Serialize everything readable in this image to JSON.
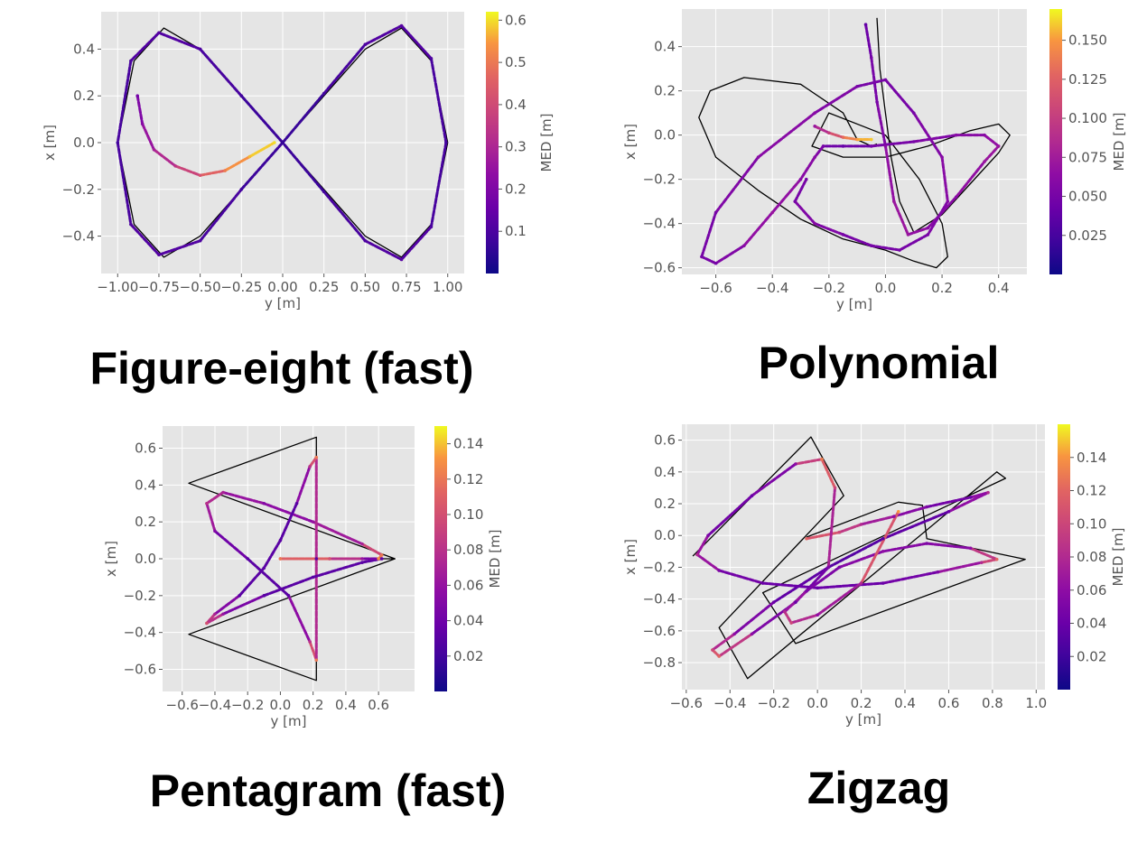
{
  "colormap": "plasma",
  "colors": {
    "panel_bg": "#e5e5e5",
    "grid": "#ffffff",
    "reference": "#000000",
    "tick_text": "#555555"
  },
  "chart_data": [
    {
      "type": "scatter",
      "caption": "Figure-eight (fast)",
      "xlabel": "y [m]",
      "ylabel": "x [m]",
      "colorbar_label": "MED [m]",
      "xlim": [
        -1.1,
        1.1
      ],
      "ylim": [
        -0.56,
        0.56
      ],
      "xticks": [
        -1.0,
        -0.75,
        -0.5,
        -0.25,
        0.0,
        0.25,
        0.5,
        0.75,
        1.0
      ],
      "xtick_labels": [
        "−1.00",
        "−0.75",
        "−0.50",
        "−0.25",
        "0.00",
        "0.25",
        "0.50",
        "0.75",
        "1.00"
      ],
      "yticks": [
        -0.4,
        -0.2,
        0.0,
        0.2,
        0.4
      ],
      "ytick_labels": [
        "−0.4",
        "−0.2",
        "0.0",
        "0.2",
        "0.4"
      ],
      "clim": [
        0.0,
        0.62
      ],
      "cticks": [
        0.1,
        0.2,
        0.3,
        0.4,
        0.5,
        0.6
      ],
      "ctick_labels": [
        "0.1",
        "0.2",
        "0.3",
        "0.4",
        "0.5",
        "0.6"
      ],
      "grid": true,
      "series": [
        {
          "role": "reference",
          "x": [
            0,
            0.25,
            0.5,
            0.72,
            0.9,
            1.0,
            0.9,
            0.72,
            0.5,
            0.25,
            0,
            -0.25,
            -0.5,
            -0.72,
            -0.9,
            -1.0,
            -0.9,
            -0.72,
            -0.5,
            -0.25,
            0
          ],
          "y": [
            0,
            0.2,
            0.4,
            0.49,
            0.35,
            0,
            -0.35,
            -0.49,
            -0.4,
            -0.2,
            0,
            0.2,
            0.4,
            0.49,
            0.35,
            0,
            -0.35,
            -0.49,
            -0.4,
            -0.2,
            0
          ]
        },
        {
          "role": "estimate",
          "x": [
            0,
            0.25,
            0.5,
            0.72,
            0.9,
            0.99,
            0.9,
            0.72,
            0.5,
            0.25,
            0,
            -0.25,
            -0.5,
            -0.75,
            -0.92,
            -1.0,
            -0.92,
            -0.75,
            -0.5,
            -0.25,
            0
          ],
          "y": [
            0,
            0.21,
            0.42,
            0.5,
            0.36,
            0,
            -0.36,
            -0.5,
            -0.42,
            -0.21,
            0,
            0.2,
            0.4,
            0.47,
            0.35,
            0,
            -0.35,
            -0.48,
            -0.42,
            -0.2,
            0
          ],
          "med": [
            0.05,
            0.08,
            0.1,
            0.12,
            0.1,
            0.08,
            0.1,
            0.12,
            0.1,
            0.08,
            0.06,
            0.08,
            0.1,
            0.12,
            0.1,
            0.08,
            0.1,
            0.12,
            0.1,
            0.08,
            0.06
          ]
        },
        {
          "role": "estimate",
          "x": [
            -0.88,
            -0.85,
            -0.78,
            -0.65,
            -0.5,
            -0.35,
            -0.2,
            -0.05
          ],
          "y": [
            0.2,
            0.08,
            -0.03,
            -0.1,
            -0.14,
            -0.12,
            -0.06,
            0.0
          ],
          "med": [
            0.18,
            0.22,
            0.28,
            0.34,
            0.42,
            0.5,
            0.57,
            0.6
          ]
        }
      ]
    },
    {
      "type": "scatter",
      "caption": "Polynomial",
      "xlabel": "y [m]",
      "ylabel": "x [m]",
      "colorbar_label": "MED [m]",
      "xlim": [
        -0.72,
        0.5
      ],
      "ylim": [
        -0.63,
        0.57
      ],
      "xticks": [
        -0.6,
        -0.4,
        -0.2,
        0.0,
        0.2,
        0.4
      ],
      "xtick_labels": [
        "−0.6",
        "−0.4",
        "−0.2",
        "0.0",
        "0.2",
        "0.4"
      ],
      "yticks": [
        -0.6,
        -0.4,
        -0.2,
        0.0,
        0.2,
        0.4
      ],
      "ytick_labels": [
        "−0.6",
        "−0.4",
        "−0.2",
        "0.0",
        "0.2",
        "0.4"
      ],
      "clim": [
        0.0,
        0.17
      ],
      "cticks": [
        0.025,
        0.05,
        0.075,
        0.1,
        0.125,
        0.15
      ],
      "ctick_labels": [
        "0.025",
        "0.050",
        "0.075",
        "0.100",
        "0.125",
        "0.150"
      ],
      "grid": true,
      "series": [
        {
          "role": "reference",
          "x": [
            -0.03,
            -0.02,
            0.0,
            0.02,
            0.05,
            0.1,
            0.2,
            0.3,
            0.4,
            0.44,
            0.4,
            0.3,
            0.15,
            0.0,
            -0.15,
            -0.26,
            -0.2,
            0.0,
            0.12,
            0.2,
            0.22,
            0.18,
            0.1,
            0.0,
            -0.15,
            -0.3,
            -0.45,
            -0.6,
            -0.66,
            -0.62,
            -0.5,
            -0.3,
            -0.15,
            -0.1,
            -0.05,
            -0.03
          ],
          "y": [
            0.53,
            0.3,
            0.1,
            -0.1,
            -0.3,
            -0.44,
            -0.36,
            -0.22,
            -0.08,
            0.0,
            0.05,
            0.02,
            -0.05,
            -0.1,
            -0.1,
            -0.05,
            0.1,
            0.0,
            -0.2,
            -0.4,
            -0.55,
            -0.6,
            -0.57,
            -0.52,
            -0.47,
            -0.38,
            -0.25,
            -0.1,
            0.08,
            0.2,
            0.26,
            0.23,
            0.1,
            -0.02,
            -0.05,
            -0.04
          ]
        },
        {
          "role": "estimate",
          "x": [
            -0.07,
            -0.05,
            -0.03,
            0.0,
            0.03,
            0.08,
            0.15,
            0.25,
            0.35,
            0.4,
            0.35,
            0.25,
            0.1,
            -0.05,
            -0.15,
            -0.22,
            -0.25,
            -0.3,
            -0.4,
            -0.5,
            -0.6,
            -0.65,
            -0.6,
            -0.45,
            -0.25,
            -0.1,
            0.0,
            0.1,
            0.2,
            0.22,
            0.15,
            0.05,
            -0.05,
            -0.15,
            -0.25,
            -0.32,
            -0.28
          ],
          "y": [
            0.5,
            0.35,
            0.15,
            -0.05,
            -0.3,
            -0.45,
            -0.42,
            -0.28,
            -0.12,
            -0.05,
            0.0,
            0.0,
            -0.03,
            -0.05,
            -0.05,
            -0.05,
            -0.1,
            -0.2,
            -0.35,
            -0.5,
            -0.58,
            -0.55,
            -0.35,
            -0.1,
            0.1,
            0.22,
            0.25,
            0.1,
            -0.1,
            -0.3,
            -0.45,
            -0.52,
            -0.5,
            -0.45,
            -0.4,
            -0.3,
            -0.2
          ],
          "med": [
            0.04,
            0.05,
            0.05,
            0.06,
            0.07,
            0.07,
            0.06,
            0.06,
            0.07,
            0.07,
            0.06,
            0.06,
            0.05,
            0.05,
            0.04,
            0.05,
            0.06,
            0.06,
            0.07,
            0.06,
            0.05,
            0.05,
            0.05,
            0.06,
            0.06,
            0.05,
            0.05,
            0.05,
            0.06,
            0.06,
            0.05,
            0.05,
            0.05,
            0.05,
            0.06,
            0.05,
            0.05
          ]
        },
        {
          "role": "estimate",
          "x": [
            -0.25,
            -0.2,
            -0.15,
            -0.1,
            -0.05
          ],
          "y": [
            0.04,
            0.01,
            -0.01,
            -0.02,
            -0.02
          ],
          "med": [
            0.07,
            0.1,
            0.13,
            0.15,
            0.16
          ]
        }
      ]
    },
    {
      "type": "scatter",
      "caption": "Pentagram (fast)",
      "xlabel": "y [m]",
      "ylabel": "x [m]",
      "colorbar_label": "MED [m]",
      "xlim": [
        -0.72,
        0.82
      ],
      "ylim": [
        -0.72,
        0.72
      ],
      "xticks": [
        -0.6,
        -0.4,
        -0.2,
        0.0,
        0.2,
        0.4,
        0.6
      ],
      "xtick_labels": [
        "−0.6",
        "−0.4",
        "−0.2",
        "0.0",
        "0.2",
        "0.4",
        "0.6"
      ],
      "yticks": [
        -0.6,
        -0.4,
        -0.2,
        0.0,
        0.2,
        0.4,
        0.6
      ],
      "ytick_labels": [
        "−0.6",
        "−0.4",
        "−0.2",
        "0.0",
        "0.2",
        "0.4",
        "0.6"
      ],
      "clim": [
        0.0,
        0.15
      ],
      "cticks": [
        0.02,
        0.04,
        0.06,
        0.08,
        0.1,
        0.12,
        0.14
      ],
      "ctick_labels": [
        "0.02",
        "0.04",
        "0.06",
        "0.08",
        "0.10",
        "0.12",
        "0.14"
      ],
      "grid": true,
      "series": [
        {
          "role": "reference",
          "x": [
            0.0,
            0.7,
            -0.56,
            0.22,
            0.22,
            -0.56,
            0.7,
            0.0
          ],
          "y": [
            0.0,
            0.0,
            0.41,
            0.66,
            -0.66,
            -0.41,
            0.0,
            0.0
          ]
        },
        {
          "role": "estimate",
          "x": [
            0.0,
            0.3,
            0.6,
            0.62,
            0.5,
            0.2,
            -0.1,
            -0.35,
            -0.45,
            -0.4,
            -0.2,
            0.05,
            0.18,
            0.22,
            0.22,
            0.22,
            0.18,
            0.1,
            0.0,
            -0.1,
            -0.25,
            -0.4,
            -0.45,
            -0.35,
            -0.1,
            0.2,
            0.5,
            0.62,
            0.5,
            0.3,
            0.0
          ],
          "y": [
            0.0,
            0.0,
            0.0,
            0.02,
            0.08,
            0.2,
            0.3,
            0.36,
            0.3,
            0.15,
            0.0,
            -0.2,
            -0.45,
            -0.55,
            0.0,
            0.55,
            0.5,
            0.3,
            0.1,
            -0.05,
            -0.2,
            -0.3,
            -0.35,
            -0.3,
            -0.2,
            -0.1,
            -0.02,
            0.0,
            0.0,
            0.0,
            0.0
          ],
          "med": [
            0.1,
            0.12,
            0.13,
            0.12,
            0.07,
            0.06,
            0.05,
            0.07,
            0.08,
            0.05,
            0.03,
            0.03,
            0.08,
            0.12,
            0.03,
            0.12,
            0.08,
            0.03,
            0.03,
            0.03,
            0.03,
            0.07,
            0.1,
            0.06,
            0.03,
            0.03,
            0.03,
            0.03,
            0.06,
            0.1,
            0.12
          ]
        }
      ]
    },
    {
      "type": "scatter",
      "caption": "Zigzag",
      "xlabel": "y [m]",
      "ylabel": "x [m]",
      "colorbar_label": "MED [m]",
      "xlim": [
        -0.62,
        1.04
      ],
      "ylim": [
        -0.97,
        0.7
      ],
      "xticks": [
        -0.6,
        -0.4,
        -0.2,
        0.0,
        0.2,
        0.4,
        0.6,
        0.8,
        1.0
      ],
      "xtick_labels": [
        "−0.6",
        "−0.4",
        "−0.2",
        "0.0",
        "0.2",
        "0.4",
        "0.6",
        "0.8",
        "1.0"
      ],
      "yticks": [
        -0.8,
        -0.6,
        -0.4,
        -0.2,
        0.0,
        0.2,
        0.4,
        0.6
      ],
      "ytick_labels": [
        "−0.8",
        "−0.6",
        "−0.4",
        "−0.2",
        "0.0",
        "0.2",
        "0.4",
        "0.6"
      ],
      "clim": [
        0.0,
        0.16
      ],
      "cticks": [
        0.02,
        0.04,
        0.06,
        0.08,
        0.1,
        0.12,
        0.14
      ],
      "ctick_labels": [
        "0.02",
        "0.04",
        "0.06",
        "0.08",
        "0.10",
        "0.12",
        "0.14"
      ],
      "grid": true,
      "series": [
        {
          "role": "reference",
          "x": [
            -0.57,
            -0.03,
            0.12,
            -0.45,
            -0.32,
            0.82,
            0.86,
            -0.25,
            -0.1,
            0.95,
            0.5,
            0.48,
            0.37,
            -0.05
          ],
          "y": [
            -0.13,
            0.62,
            0.25,
            -0.58,
            -0.9,
            0.4,
            0.36,
            -0.36,
            -0.68,
            -0.15,
            -0.02,
            0.19,
            0.21,
            -0.01
          ]
        },
        {
          "role": "estimate",
          "x": [
            -0.05,
            0.1,
            0.2,
            0.35,
            0.5,
            0.7,
            0.78,
            0.6,
            0.3,
            0.05,
            -0.2,
            -0.38,
            -0.48,
            -0.45,
            -0.3,
            -0.1,
            0.05,
            0.08,
            0.02,
            -0.1,
            -0.3,
            -0.5,
            -0.55,
            -0.45,
            -0.25,
            0.0,
            0.3,
            0.55,
            0.75,
            0.82,
            0.7,
            0.5,
            0.3,
            0.1,
            -0.05,
            -0.15,
            -0.12,
            0.0,
            0.2,
            0.37
          ],
          "y": [
            -0.02,
            0.02,
            0.07,
            0.12,
            0.18,
            0.24,
            0.27,
            0.15,
            -0.02,
            -0.2,
            -0.42,
            -0.62,
            -0.72,
            -0.76,
            -0.62,
            -0.42,
            -0.2,
            0.3,
            0.48,
            0.45,
            0.25,
            0.0,
            -0.12,
            -0.22,
            -0.3,
            -0.33,
            -0.3,
            -0.23,
            -0.17,
            -0.15,
            -0.08,
            -0.05,
            -0.1,
            -0.2,
            -0.35,
            -0.48,
            -0.55,
            -0.5,
            -0.3,
            0.15
          ],
          "med": [
            0.12,
            0.1,
            0.08,
            0.06,
            0.05,
            0.04,
            0.08,
            0.04,
            0.03,
            0.03,
            0.04,
            0.06,
            0.1,
            0.12,
            0.06,
            0.04,
            0.05,
            0.1,
            0.13,
            0.06,
            0.04,
            0.05,
            0.08,
            0.05,
            0.04,
            0.04,
            0.04,
            0.05,
            0.08,
            0.12,
            0.06,
            0.05,
            0.06,
            0.05,
            0.05,
            0.08,
            0.1,
            0.06,
            0.08,
            0.14
          ]
        }
      ]
    }
  ]
}
